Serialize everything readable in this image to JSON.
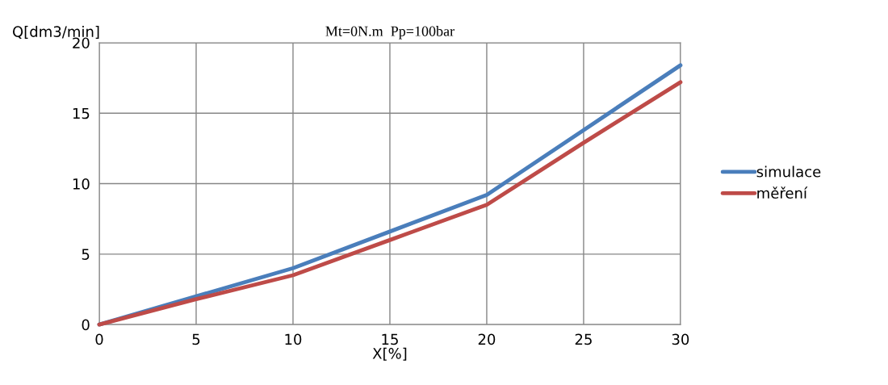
{
  "chart_data": {
    "type": "line",
    "title": "Mt=0N.m  Pp=100bar",
    "xlabel": "X[%]",
    "ylabel": "Q[dm3/min]",
    "x": [
      0,
      5,
      10,
      15,
      20,
      25,
      30
    ],
    "series": [
      {
        "name": "simulace",
        "color": "#4a7ebb",
        "values": [
          0,
          2,
          4.0,
          6.6,
          9.2,
          13.8,
          18.4
        ]
      },
      {
        "name": "měření",
        "color": "#be4b48",
        "values": [
          0,
          1.8,
          3.5,
          6.0,
          8.5,
          12.9,
          17.2
        ]
      }
    ],
    "xlim": [
      0,
      30
    ],
    "xticks": [
      0,
      5,
      10,
      15,
      20,
      25,
      30
    ],
    "ylim": [
      0,
      20
    ],
    "yticks": [
      0,
      5,
      10,
      15,
      20
    ],
    "grid": true,
    "legend": "right",
    "marker": "none",
    "line_style": "solid"
  }
}
